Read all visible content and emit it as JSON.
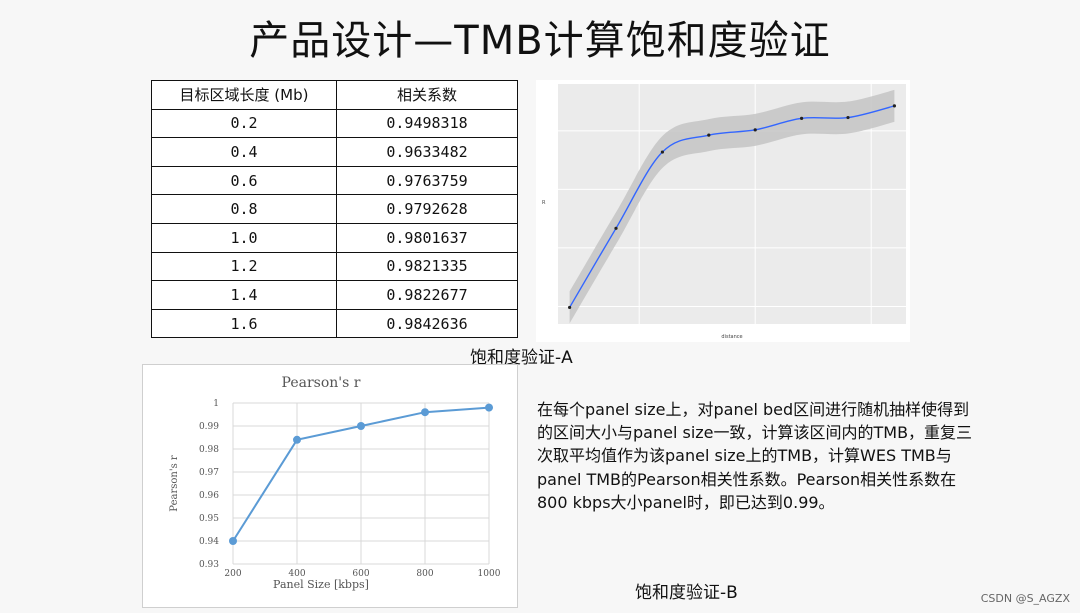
{
  "slide": {
    "title": "产品设计—TMB计算饱和度验证",
    "caption_a": "饱和度验证-A",
    "caption_b": "饱和度验证-B",
    "description": "在每个panel size上，对panel bed区间进行随机抽样使得到的区间大小与panel size一致，计算该区间内的TMB，重复三次取平均值作为该panel size上的TMB，计算WES TMB与panel TMB的Pearson相关性系数。Pearson相关性系数在800 kbps大小panel时，即已达到0.99。",
    "watermark": "CSDN @S_AGZX"
  },
  "table": {
    "headers": [
      "目标区域长度 (Mb)",
      "相关系数"
    ],
    "rows": [
      [
        "0.2",
        "0.9498318"
      ],
      [
        "0.4",
        "0.9633482"
      ],
      [
        "0.6",
        "0.9763759"
      ],
      [
        "0.8",
        "0.9792628"
      ],
      [
        "1.0",
        "0.9801637"
      ],
      [
        "1.2",
        "0.9821335"
      ],
      [
        "1.4",
        "0.9822677"
      ],
      [
        "1.6",
        "0.9842636"
      ]
    ]
  },
  "chart_data": [
    {
      "type": "line",
      "smoothed": true,
      "confidence_band": true,
      "x": [
        0.2,
        0.4,
        0.6,
        0.8,
        1.0,
        1.2,
        1.4,
        1.6
      ],
      "y": [
        0.9498318,
        0.9633482,
        0.9763759,
        0.9792628,
        0.9801637,
        0.9821335,
        0.9822677,
        0.9842636
      ],
      "xlabel": "distance",
      "ylabel": "R",
      "xlim": [
        0.15,
        1.65
      ],
      "ylim": [
        0.947,
        0.988
      ],
      "grid": true,
      "background": "#ebebeb",
      "line_color": "#3366ff",
      "band_color": "#c4c4c4"
    },
    {
      "type": "line",
      "title": "Pearson's r",
      "xlabel": "Panel Size [kbps]",
      "ylabel": "Pearson's r",
      "x": [
        200,
        400,
        600,
        800,
        1000
      ],
      "y": [
        0.94,
        0.984,
        0.99,
        0.996,
        0.998
      ],
      "xticks": [
        "200",
        "400",
        "600",
        "800",
        "1000"
      ],
      "yticks": [
        "0.93",
        "0.94",
        "0.95",
        "0.96",
        "0.97",
        "0.98",
        "0.99",
        "1"
      ],
      "ylim": [
        0.93,
        1.0
      ],
      "grid": true,
      "line_color": "#5b9bd5"
    }
  ]
}
